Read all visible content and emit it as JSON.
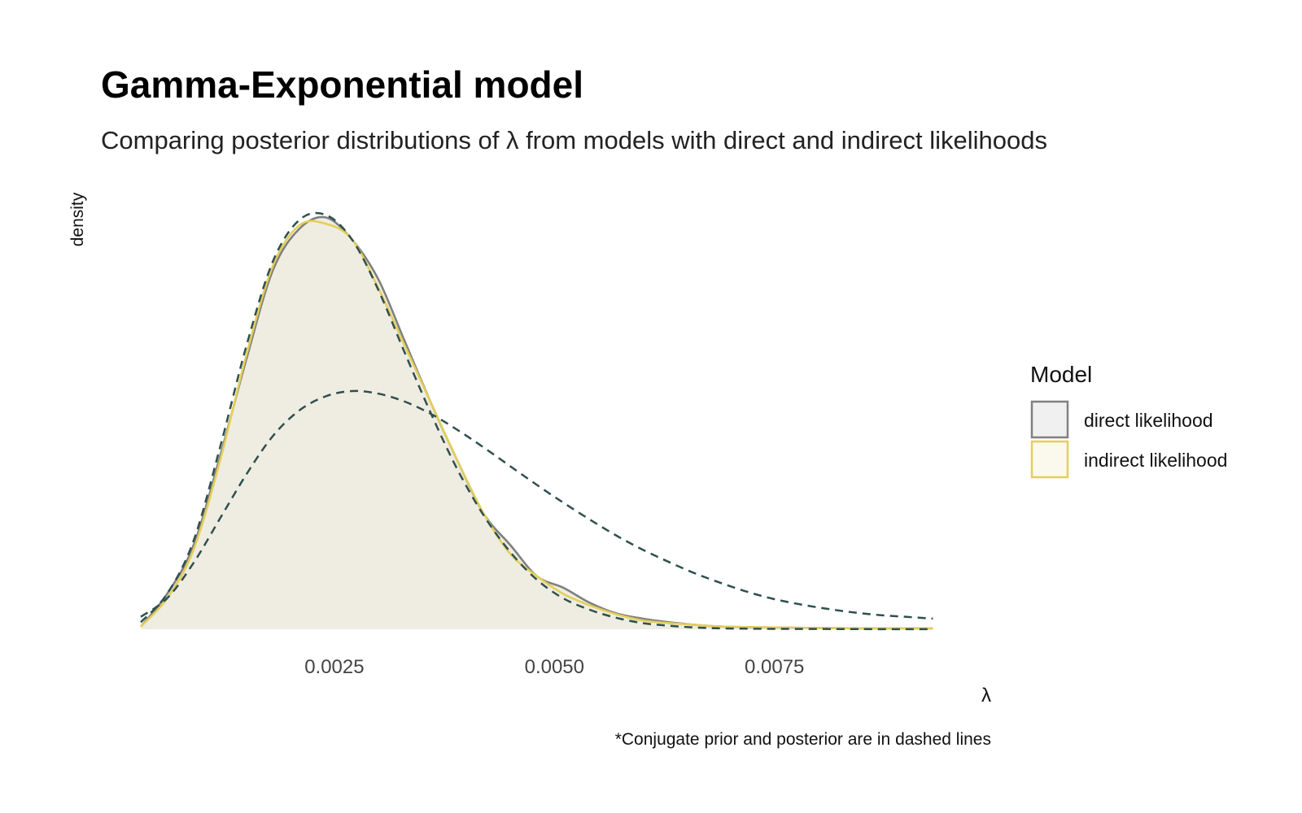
{
  "chart_data": {
    "type": "area",
    "title": "Gamma-Exponential model",
    "subtitle": "Comparing posterior distributions of λ from models with direct and indirect likelihoods",
    "xlabel": "λ",
    "ylabel": "density",
    "caption": "*Conjugate prior and posterior are in dashed lines",
    "xlim": [
      0.0003,
      0.0095
    ],
    "ylim": [
      0,
      470
    ],
    "grid": false,
    "x_ticks": [
      0.0025,
      0.005,
      0.0075
    ],
    "x_tick_labels": [
      "0.0025",
      "0.0050",
      "0.0075"
    ],
    "legend": {
      "title": "Model",
      "position": "right",
      "entries": [
        {
          "label": "direct likelihood",
          "stroke": "#808080",
          "fill": "#f0f0f0"
        },
        {
          "label": "indirect likelihood",
          "stroke": "#e3cf5a",
          "fill": "#fbf9ee"
        }
      ]
    },
    "series": [
      {
        "name": "direct likelihood",
        "style": "filled-density",
        "stroke": "#808080",
        "fill": "#efede2",
        "x": [
          0.0003,
          0.0006,
          0.0009,
          0.0012,
          0.0015,
          0.0018,
          0.0021,
          0.0024,
          0.0027,
          0.003,
          0.0033,
          0.0036,
          0.0039,
          0.0042,
          0.0045,
          0.0048,
          0.0051,
          0.0054,
          0.0057,
          0.006,
          0.0063,
          0.0066,
          0.0069,
          0.0075,
          0.0085,
          0.0093
        ],
        "y": [
          3,
          40,
          95,
          195,
          305,
          405,
          452,
          465,
          440,
          395,
          325,
          255,
          190,
          130,
          95,
          60,
          47,
          30,
          18,
          12,
          8,
          5,
          3,
          2,
          1,
          1
        ]
      },
      {
        "name": "indirect likelihood",
        "style": "density-line",
        "stroke": "#e3cf5a",
        "x": [
          0.0003,
          0.0006,
          0.0009,
          0.0012,
          0.0015,
          0.0018,
          0.0021,
          0.0024,
          0.0027,
          0.003,
          0.0033,
          0.0036,
          0.0039,
          0.0042,
          0.0045,
          0.0048,
          0.0051,
          0.0054,
          0.0057,
          0.006,
          0.0063,
          0.0066,
          0.0069,
          0.0075,
          0.0085,
          0.0093
        ],
        "y": [
          3,
          35,
          90,
          190,
          310,
          410,
          456,
          458,
          440,
          385,
          320,
          255,
          190,
          130,
          85,
          60,
          40,
          27,
          17,
          10,
          7,
          5,
          3,
          2,
          1,
          1
        ]
      },
      {
        "name": "conjugate posterior",
        "style": "dashed",
        "stroke": "#2f4f4f",
        "x": [
          0.0003,
          0.0006,
          0.0009,
          0.0012,
          0.0015,
          0.0018,
          0.0021,
          0.0024,
          0.0027,
          0.003,
          0.0033,
          0.0036,
          0.0039,
          0.0042,
          0.0045,
          0.0048,
          0.0051,
          0.0054,
          0.0057,
          0.006,
          0.0063,
          0.0066,
          0.0069,
          0.0075,
          0.0085,
          0.0093
        ],
        "y": [
          8,
          40,
          100,
          205,
          320,
          415,
          462,
          468,
          440,
          383,
          312,
          243,
          180,
          128,
          87,
          56,
          35,
          22,
          13,
          7,
          4,
          2,
          1,
          0.5,
          0.2,
          0.1
        ]
      },
      {
        "name": "conjugate prior",
        "style": "dashed",
        "stroke": "#2f4f4f",
        "x": [
          0.0003,
          0.0006,
          0.0009,
          0.0012,
          0.0015,
          0.0018,
          0.0021,
          0.0024,
          0.0027,
          0.003,
          0.0033,
          0.0036,
          0.0039,
          0.0042,
          0.0045,
          0.0048,
          0.0051,
          0.0054,
          0.0057,
          0.006,
          0.0063,
          0.0066,
          0.0069,
          0.0072,
          0.0075,
          0.0078,
          0.0081,
          0.0084,
          0.0087,
          0.009,
          0.0093
        ],
        "y": [
          14,
          35,
          75,
          125,
          175,
          218,
          247,
          263,
          269,
          266,
          257,
          243,
          225,
          205,
          184,
          163,
          143,
          124,
          106,
          90,
          76,
          63,
          52,
          42,
          34,
          28,
          23,
          19,
          16,
          14,
          12
        ]
      }
    ]
  }
}
